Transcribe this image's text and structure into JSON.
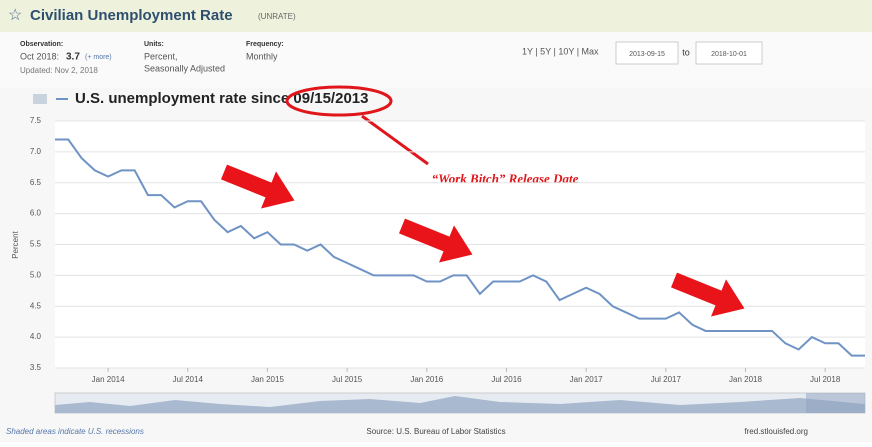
{
  "header": {
    "title": "Civilian Unemployment Rate",
    "series_id": "(UNRATE)",
    "observation_label": "Observation:",
    "observation_date": "Oct 2018:",
    "observation_value": "3.7",
    "more": "(+ more)",
    "updated": "Updated: Nov 2, 2018",
    "units_label": "Units:",
    "units_1": "Percent,",
    "units_2": "Seasonally Adjusted",
    "frequency_label": "Frequency:",
    "frequency": "Monthly",
    "ranges": "1Y | 5Y | 10Y | Max",
    "date_from": "2013-09-15",
    "to": "to",
    "date_to": "2018-10-01"
  },
  "chart_data": {
    "type": "line",
    "title": "U.S. unemployment rate since 09/15/2013",
    "ylabel": "Percent",
    "annotation": "“Work Bitch” Release Date",
    "color": "#6f93c4",
    "grid": true,
    "x": [
      "2013-09",
      "2013-10",
      "2013-11",
      "2013-12",
      "2014-01",
      "2014-02",
      "2014-03",
      "2014-04",
      "2014-05",
      "2014-06",
      "2014-07",
      "2014-08",
      "2014-09",
      "2014-10",
      "2014-11",
      "2014-12",
      "2015-01",
      "2015-02",
      "2015-03",
      "2015-04",
      "2015-05",
      "2015-06",
      "2015-07",
      "2015-08",
      "2015-09",
      "2015-10",
      "2015-11",
      "2015-12",
      "2016-01",
      "2016-02",
      "2016-03",
      "2016-04",
      "2016-05",
      "2016-06",
      "2016-07",
      "2016-08",
      "2016-09",
      "2016-10",
      "2016-11",
      "2016-12",
      "2017-01",
      "2017-02",
      "2017-03",
      "2017-04",
      "2017-05",
      "2017-06",
      "2017-07",
      "2017-08",
      "2017-09",
      "2017-10",
      "2017-11",
      "2017-12",
      "2018-01",
      "2018-02",
      "2018-03",
      "2018-04",
      "2018-05",
      "2018-06",
      "2018-07",
      "2018-08",
      "2018-09",
      "2018-10"
    ],
    "values": [
      7.2,
      7.2,
      6.9,
      6.7,
      6.6,
      6.7,
      6.7,
      6.3,
      6.3,
      6.1,
      6.2,
      6.2,
      5.9,
      5.7,
      5.8,
      5.6,
      5.7,
      5.5,
      5.5,
      5.4,
      5.5,
      5.3,
      5.2,
      5.1,
      5.0,
      5.0,
      5.0,
      5.0,
      4.9,
      4.9,
      5.0,
      5.0,
      4.7,
      4.9,
      4.9,
      4.9,
      5.0,
      4.9,
      4.6,
      4.7,
      4.8,
      4.7,
      4.5,
      4.4,
      4.3,
      4.3,
      4.3,
      4.4,
      4.2,
      4.1,
      4.1,
      4.1,
      4.1,
      4.1,
      4.1,
      3.9,
      3.8,
      4.0,
      3.9,
      3.9,
      3.7,
      3.7
    ],
    "xlim": [
      "2013-09",
      "2018-10"
    ],
    "xticks": [
      {
        "value": "2014-01",
        "label": "Jan 2014"
      },
      {
        "value": "2014-07",
        "label": "Jul 2014"
      },
      {
        "value": "2015-01",
        "label": "Jan 2015"
      },
      {
        "value": "2015-07",
        "label": "Jul 2015"
      },
      {
        "value": "2016-01",
        "label": "Jan 2016"
      },
      {
        "value": "2016-07",
        "label": "Jul 2016"
      },
      {
        "value": "2017-01",
        "label": "Jan 2017"
      },
      {
        "value": "2017-07",
        "label": "Jul 2017"
      },
      {
        "value": "2018-01",
        "label": "Jan 2018"
      },
      {
        "value": "2018-07",
        "label": "Jul 2018"
      }
    ],
    "ylim": [
      3.5,
      7.5
    ],
    "yticks": [
      3.5,
      {
        "value": 4,
        "label": "4.0"
      },
      4.5,
      {
        "value": 5,
        "label": "5.0"
      },
      5.5,
      {
        "value": 6,
        "label": "6.0"
      },
      6.5,
      {
        "value": 7,
        "label": "7.0"
      },
      7.5
    ]
  },
  "footer": {
    "recessions": "Shaded areas indicate U.S. recessions",
    "source": "Source: U.S. Bureau of Labor Statistics",
    "site": "fred.stlouisfed.org"
  }
}
